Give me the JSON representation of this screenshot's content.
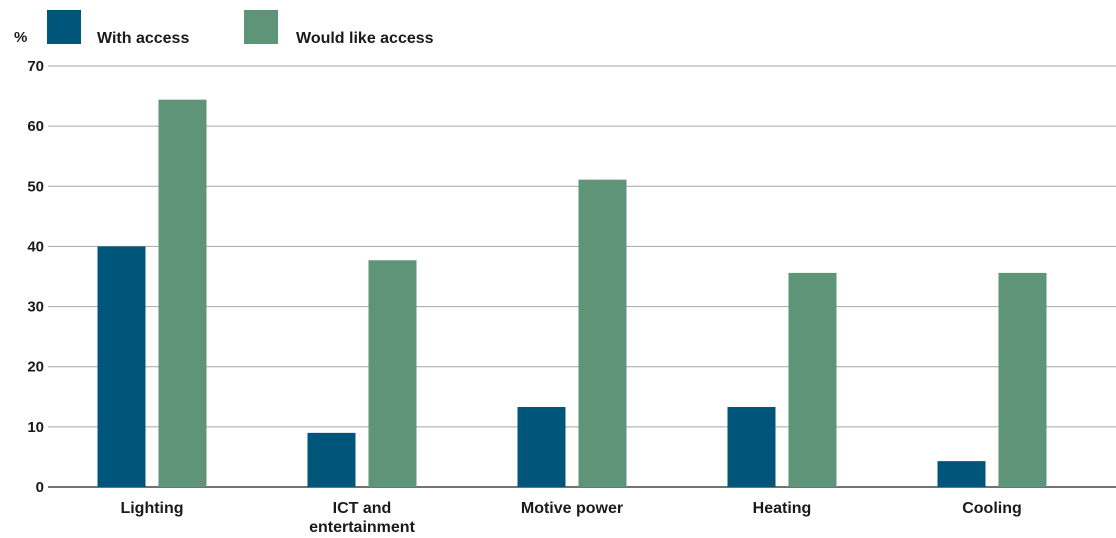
{
  "chart_data": {
    "type": "bar",
    "title": "",
    "xlabel": "",
    "ylabel": "%",
    "ylim": [
      0,
      70
    ],
    "yticks": [
      0,
      10,
      20,
      30,
      40,
      50,
      60,
      70
    ],
    "grid": true,
    "legend_position": "top-left",
    "categories": [
      [
        "Lighting"
      ],
      [
        "ICT and",
        "entertainment"
      ],
      [
        "Motive power"
      ],
      [
        "Heating"
      ],
      [
        "Cooling"
      ]
    ],
    "series": [
      {
        "name": "With access",
        "color": "#00557a",
        "values": [
          40,
          9,
          13.3,
          13.3,
          4.3
        ]
      },
      {
        "name": "Would like access",
        "color": "#5e9478",
        "values": [
          64.4,
          37.7,
          51.1,
          35.6,
          35.6
        ]
      }
    ]
  }
}
